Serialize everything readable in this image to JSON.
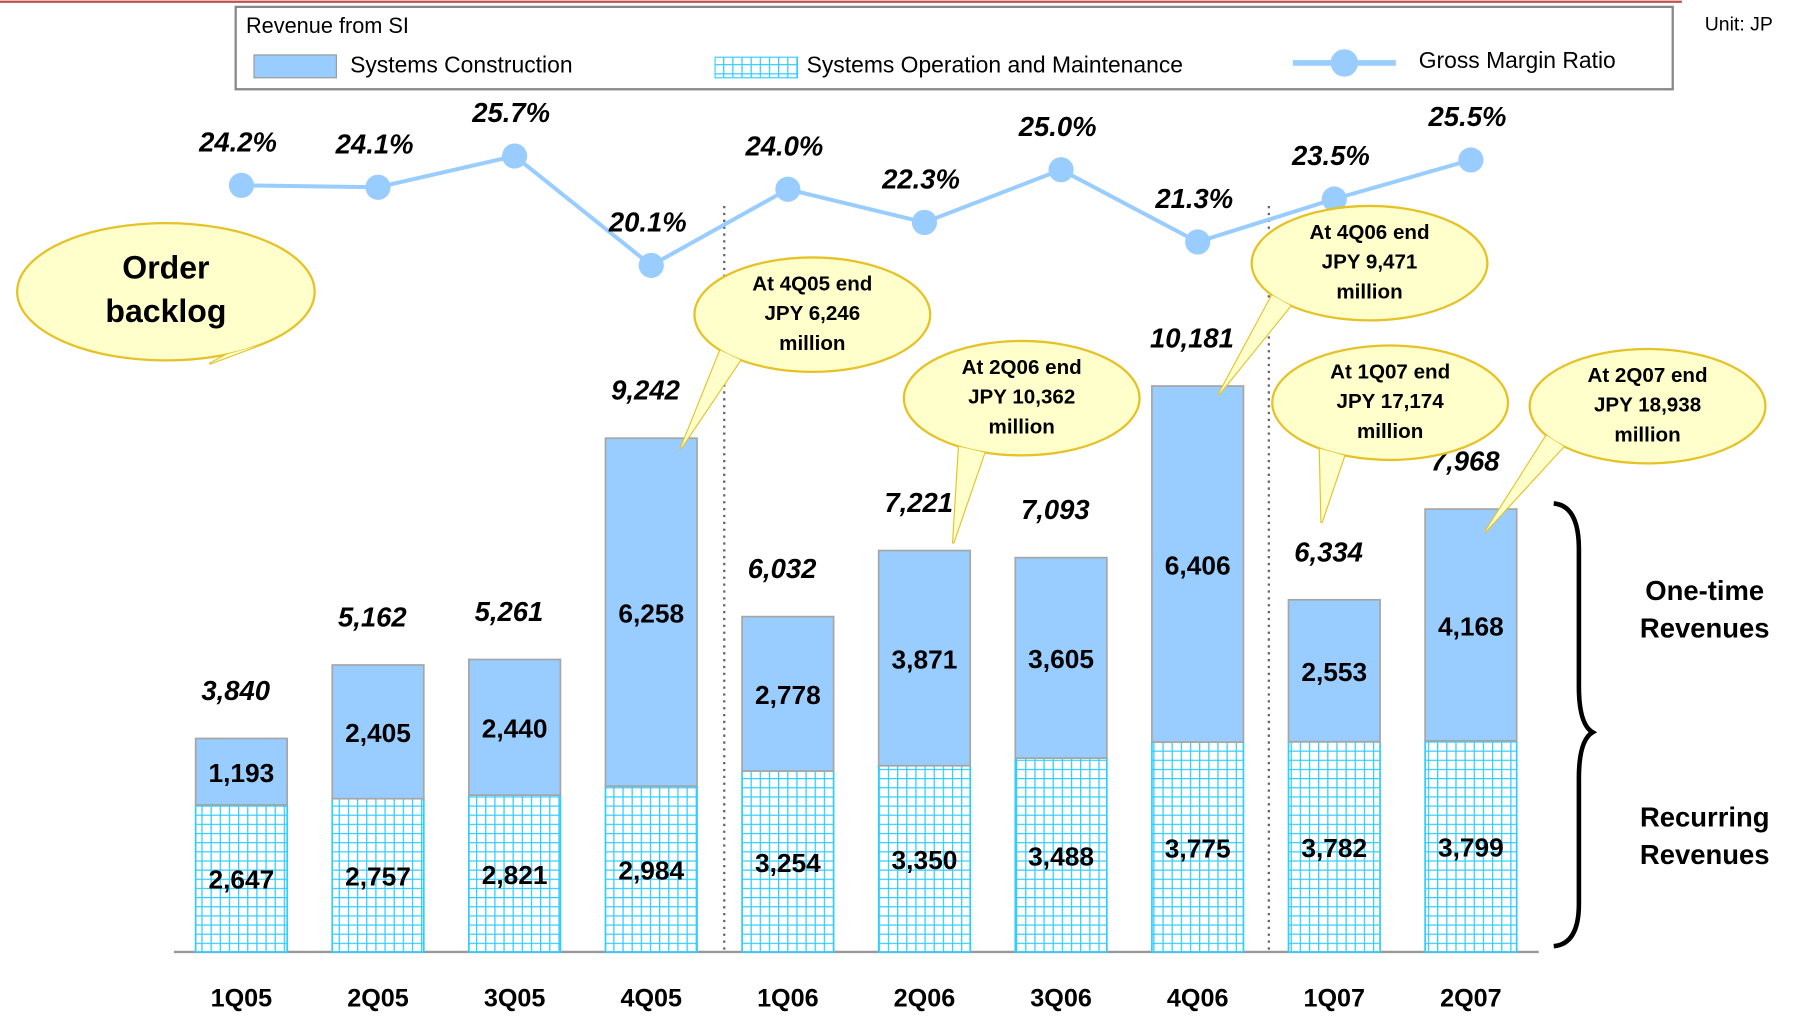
{
  "chart_data": {
    "type": "bar",
    "legend_title": "Revenue from SI",
    "unit": "Unit: JP",
    "categories": [
      "1Q05",
      "2Q05",
      "3Q05",
      "4Q05",
      "1Q06",
      "2Q06",
      "3Q06",
      "4Q06",
      "1Q07",
      "2Q07"
    ],
    "stacked": true,
    "ylim": [
      0,
      12000
    ],
    "y2lim": [
      0,
      30
    ],
    "series": [
      {
        "name": "Systems Operation and Maintenance",
        "color": "#33ccff",
        "pattern": "grid",
        "values": [
          2647,
          2757,
          2821,
          2984,
          3254,
          3350,
          3488,
          3775,
          3782,
          3799
        ],
        "value_labels": [
          "2,647",
          "2,757",
          "2,821",
          "2,984",
          "3,254",
          "3,350",
          "3,488",
          "3,775",
          "3,782",
          "3,799"
        ]
      },
      {
        "name": "Systems Construction",
        "color": "#99ccff",
        "values": [
          1193,
          2405,
          2440,
          6258,
          2778,
          3871,
          3605,
          6406,
          2553,
          4168
        ],
        "value_labels": [
          "1,193",
          "2,405",
          "2,440",
          "6,258",
          "2,778",
          "3,871",
          "3,605",
          "6,406",
          "2,553",
          "4,168"
        ]
      },
      {
        "name": "Gross Margin Ratio",
        "type": "line",
        "axis": "y2",
        "color": "#99ccff",
        "values": [
          24.2,
          24.1,
          25.7,
          20.1,
          24.0,
          22.3,
          25.0,
          21.3,
          23.5,
          25.5
        ],
        "value_labels": [
          "24.2%",
          "24.1%",
          "25.7%",
          "20.1%",
          "24.0%",
          "22.3%",
          "25.0%",
          "21.3%",
          "23.5%",
          "25.5%"
        ]
      }
    ],
    "totals": {
      "values": [
        3840,
        5162,
        5261,
        9242,
        6032,
        7221,
        7093,
        10181,
        6334,
        7968
      ],
      "value_labels": [
        "3,840",
        "5,162",
        "5,261",
        "9,242",
        "6,032",
        "7,221",
        "7,093",
        "10,181",
        "6,334",
        "7,968"
      ]
    },
    "backlog_title": [
      "Order",
      "backlog"
    ],
    "callouts": [
      {
        "category": "4Q05",
        "lines": [
          "At 4Q05 end",
          "JPY 6,246",
          "million"
        ]
      },
      {
        "category": "2Q06",
        "lines": [
          "At 2Q06 end",
          "JPY 10,362",
          "million"
        ]
      },
      {
        "category": "4Q06",
        "lines": [
          "At 4Q06 end",
          "JPY 9,471",
          "million"
        ]
      },
      {
        "category": "1Q07",
        "lines": [
          "At 1Q07 end",
          "JPY 17,174",
          "million"
        ]
      },
      {
        "category": "2Q07",
        "lines": [
          "At 2Q07 end",
          "JPY 18,938",
          "million"
        ]
      }
    ],
    "brackets": [
      [
        "One-time",
        "Revenues"
      ],
      [
        "Recurring",
        "Revenues"
      ]
    ]
  }
}
